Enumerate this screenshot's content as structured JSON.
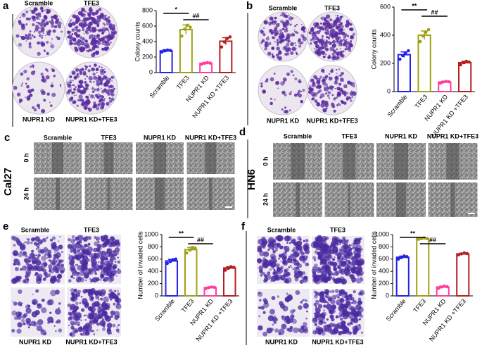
{
  "panel_labels": [
    "a",
    "b",
    "c",
    "d",
    "e",
    "f"
  ],
  "cell_lines": [
    "Cal27",
    "HN6"
  ],
  "image_labels": {
    "a": [
      "Scramble",
      "TFE3",
      "NUPR1 KD",
      "NUPR1 KD+TFE3"
    ],
    "b": [
      "Scramble",
      "TFE3",
      "NUPR1 KD",
      "NUPR1 KD+TFE3"
    ],
    "c": [
      "Scramble",
      "TFE3",
      "NUPR1 KD",
      "NUPR1 KD+TFE3"
    ],
    "d": [
      "Scramble",
      "TFE3",
      "NUPR1 KD",
      "NUPR1 KD+TFE3"
    ],
    "e": [
      "Scramble",
      "TFE3",
      "NUPR1 KD",
      "NUPR1 KD+TFE3"
    ],
    "f": [
      "Scramble",
      "TFE3",
      "NUPR1 KD",
      "NUPR1 KD+TFE3"
    ]
  },
  "time_labels": {
    "c": [
      "0 h",
      "24 h"
    ],
    "d": [
      "0 h",
      "24 h"
    ]
  },
  "chart_data": [
    {
      "type": "bar",
      "ylabel": "Colony counts",
      "categories": [
        "Scramble",
        "TFE3",
        "NUPR1 KD",
        "NUPR1 KD +TFE3"
      ],
      "values": [
        280,
        555,
        120,
        405
      ],
      "errors": [
        15,
        60,
        12,
        45
      ],
      "points": [
        [
          265,
          280,
          290,
          285
        ],
        [
          470,
          560,
          610,
          585
        ],
        [
          108,
          120,
          128,
          122
        ],
        [
          330,
          395,
          440,
          460
        ]
      ],
      "colors": [
        "#2323e6",
        "#a0a014",
        "#ff3d9a",
        "#b41e1e"
      ],
      "ylim": [
        0,
        800
      ],
      "yticks": [
        0,
        200,
        400,
        600,
        800
      ],
      "significance": [
        "*",
        "##"
      ]
    },
    {
      "type": "bar",
      "ylabel": "Colony counts",
      "categories": [
        "Scramble",
        "TFE3",
        "NUPR1 KD",
        "NUPR1 KD +TFE3"
      ],
      "values": [
        262,
        400,
        68,
        205
      ],
      "errors": [
        20,
        30,
        5,
        10
      ],
      "points": [
        [
          230,
          255,
          275,
          290
        ],
        [
          355,
          395,
          420,
          440
        ],
        [
          60,
          68,
          72,
          70
        ],
        [
          190,
          205,
          215,
          210
        ]
      ],
      "colors": [
        "#2323e6",
        "#a0a014",
        "#ff3d9a",
        "#b41e1e"
      ],
      "ylim": [
        0,
        600
      ],
      "yticks": [
        0,
        200,
        400,
        600
      ],
      "significance": [
        "**",
        "##"
      ]
    },
    {
      "type": "bar",
      "ylabel": "Number of invaded cells",
      "categories": [
        "Scramble",
        "TFE3",
        "NUPR1 KD",
        "NUPR1 KD +TFE3"
      ],
      "values": [
        570,
        755,
        135,
        455
      ],
      "errors": [
        25,
        35,
        10,
        20
      ],
      "points": [
        [
          530,
          560,
          590,
          600
        ],
        [
          700,
          750,
          790,
          780
        ],
        [
          120,
          135,
          145,
          140
        ],
        [
          420,
          450,
          475,
          465
        ]
      ],
      "colors": [
        "#2323e6",
        "#a0a014",
        "#ff3d9a",
        "#b41e1e"
      ],
      "ylim": [
        0,
        1000
      ],
      "yticks": [
        0,
        200,
        400,
        600,
        800,
        1000
      ],
      "significance": [
        "**",
        "##"
      ]
    },
    {
      "type": "bar",
      "ylabel": "Number of invaded cells",
      "categories": [
        "Scramble",
        "TFE3",
        "NUPR1 KD",
        "NUPR1 KD +TFE3"
      ],
      "values": [
        630,
        935,
        145,
        685
      ],
      "errors": [
        20,
        8,
        15,
        10
      ],
      "points": [
        [
          600,
          625,
          650,
          640
        ],
        [
          925,
          935,
          945,
          935
        ],
        [
          125,
          145,
          160,
          150
        ],
        [
          670,
          685,
          700,
          690
        ]
      ],
      "colors": [
        "#2323e6",
        "#a0a014",
        "#ff3d9a",
        "#b41e1e"
      ],
      "ylim": [
        0,
        1000
      ],
      "yticks": [
        0,
        200,
        400,
        600,
        800,
        1000
      ],
      "significance": [
        "**",
        "##"
      ]
    }
  ]
}
